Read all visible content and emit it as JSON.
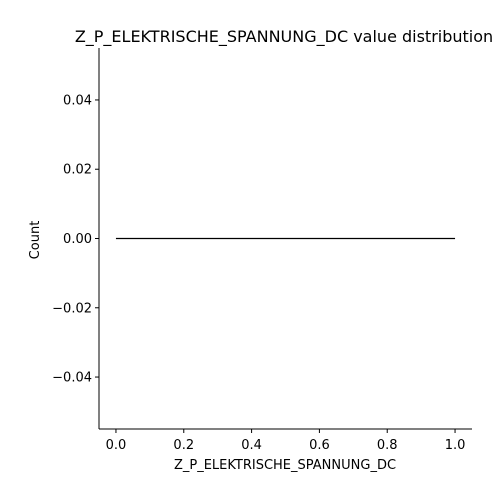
{
  "chart_data": {
    "type": "line",
    "title": "Z_P_ELEKTRISCHE_SPANNUNG_DC value distribution",
    "xlabel": "Z_P_ELEKTRISCHE_SPANNUNG_DC",
    "ylabel": "Count",
    "xlim": [
      -0.05,
      1.05
    ],
    "ylim": [
      -0.055,
      0.055
    ],
    "x_ticks": [
      0.0,
      0.2,
      0.4,
      0.6,
      0.8,
      1.0
    ],
    "x_tick_labels": [
      "0.0",
      "0.2",
      "0.4",
      "0.6",
      "0.8",
      "1.0"
    ],
    "y_ticks": [
      -0.04,
      -0.02,
      0.0,
      0.02,
      0.04
    ],
    "y_tick_labels": [
      "−0.04",
      "−0.02",
      "0.00",
      "0.02",
      "0.04"
    ],
    "grid": false,
    "legend": "none",
    "series": [
      {
        "color": "#000000",
        "x": [
          0.0,
          1.0
        ],
        "y": [
          0.0,
          0.0
        ]
      }
    ]
  }
}
